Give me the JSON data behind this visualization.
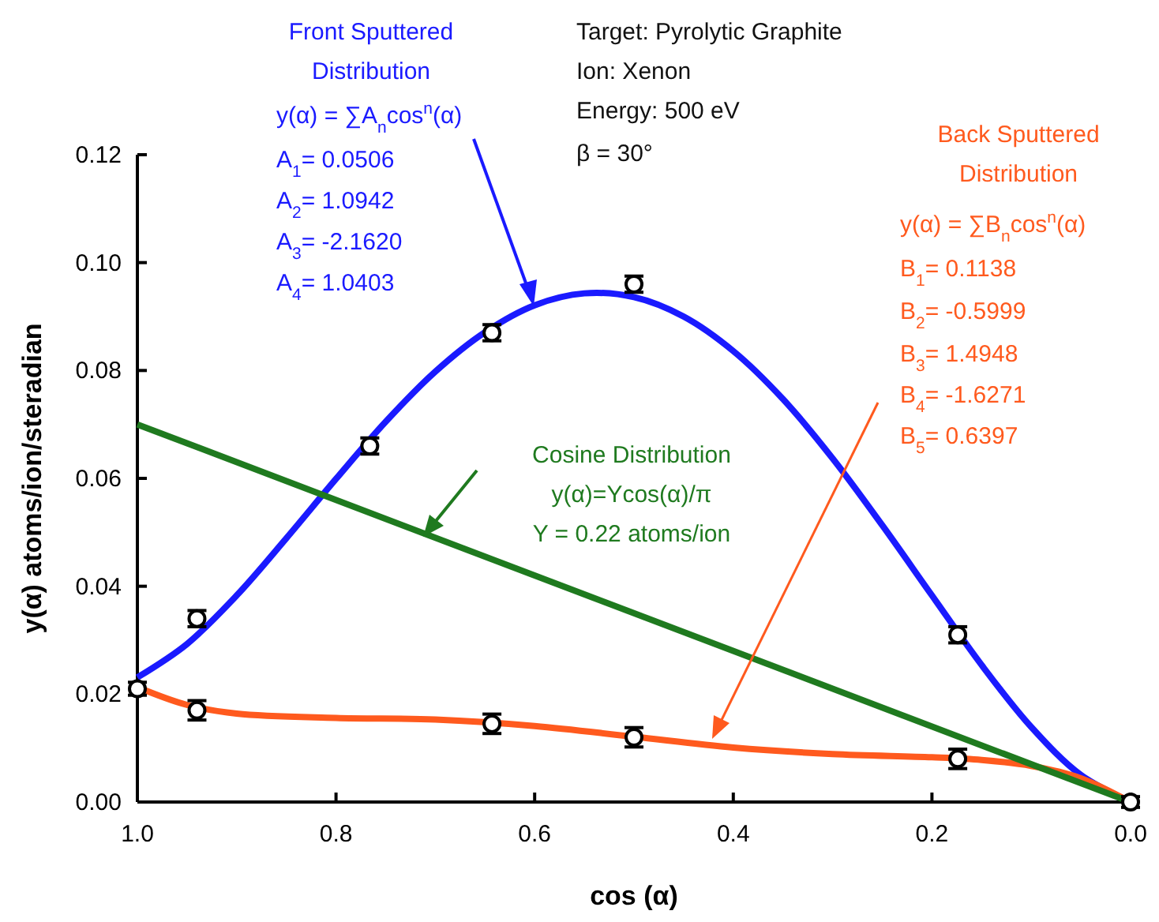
{
  "chart_data": {
    "type": "line",
    "xlabel": "cos (α)",
    "ylabel": "y(α) atoms/ion/steradian",
    "xlim": [
      1,
      0
    ],
    "ylim": [
      0,
      0.12
    ],
    "xticks": [
      {
        "value": 1,
        "label": "1.0"
      },
      {
        "value": 0.8,
        "label": "0.8"
      },
      {
        "value": 0.6,
        "label": "0.6"
      },
      {
        "value": 0.4,
        "label": "0.4"
      },
      {
        "value": 0.2,
        "label": "0.2"
      },
      {
        "value": 0,
        "label": "0.0"
      }
    ],
    "yticks": [
      {
        "value": 0,
        "label": "0.00"
      },
      {
        "value": 0.02,
        "label": "0.02"
      },
      {
        "value": 0.04,
        "label": "0.04"
      },
      {
        "value": 0.06,
        "label": "0.06"
      },
      {
        "value": 0.08,
        "label": "0.08"
      },
      {
        "value": 0.1,
        "label": "0.10"
      },
      {
        "value": 0.12,
        "label": "0.12"
      }
    ],
    "series": [
      {
        "name": "Front Sputtered Distribution",
        "color": "#1a1aff",
        "x": [
          0,
          0.05,
          0.1,
          0.15,
          0.2,
          0.25,
          0.3,
          0.35,
          0.4,
          0.45,
          0.5,
          0.55,
          0.6,
          0.65,
          0.7,
          0.75,
          0.8,
          0.85,
          0.9,
          0.95,
          1
        ],
        "values": [
          0,
          0.005,
          0.0139,
          0.0254,
          0.0383,
          0.0513,
          0.0637,
          0.0747,
          0.0836,
          0.09,
          0.0936,
          0.0943,
          0.0921,
          0.0871,
          0.0798,
          0.0705,
          0.0599,
          0.0489,
          0.0383,
          0.0293,
          0.0231
        ]
      },
      {
        "name": "Back Sputtered Distribution",
        "color": "#ff5a1e",
        "x": [
          0,
          0.05,
          0.1,
          0.15,
          0.2,
          0.3,
          0.4,
          0.5,
          0.6,
          0.7,
          0.8,
          0.9,
          0.95,
          1
        ],
        "values": [
          0,
          0.0044,
          0.0067,
          0.0078,
          0.0083,
          0.0089,
          0.0101,
          0.0121,
          0.0141,
          0.0153,
          0.0156,
          0.0164,
          0.018,
          0.0213
        ]
      },
      {
        "name": "Cosine Distribution",
        "color": "#1f7a1f",
        "x": [
          0,
          1
        ],
        "values": [
          0,
          0.07
        ]
      },
      {
        "type": "scatter",
        "color": "#000000",
        "marker": "circle",
        "x": [
          1,
          0.94,
          0.766,
          0.643,
          0.5,
          0.174,
          0
        ],
        "values": [
          0.021,
          0.034,
          0.066,
          0.087,
          0.096,
          0.031,
          0
        ],
        "errors": [
          0.0012,
          0.0015,
          0.0015,
          0.0015,
          0.0015,
          0.0015,
          0.001
        ]
      },
      {
        "type": "scatter",
        "color": "#000000",
        "marker": "circle",
        "x": [
          0.94,
          0.643,
          0.5,
          0.174
        ],
        "values": [
          0.017,
          0.0145,
          0.012,
          0.008
        ],
        "errors": [
          0.0018,
          0.0018,
          0.0018,
          0.0018
        ]
      }
    ],
    "annotations": [
      "y(α) = ∑A$_{n}$cos$^{n}$(α)",
      "A$_{1}$= 0.0506",
      "A$_{2}$= 1.0942",
      "A$_{3}$= -2.1620",
      "A$_{4}$= 1.0403",
      "Target:  Pyrolytic Graphite",
      "Ion:  Xenon",
      "Energy: 500 eV",
      "β = 30°",
      "y(α) = ∑B$_{n}$cos$^{n}$(α)",
      "B$_{1}$= 0.1138",
      "B$_{2}$= -0.5999",
      "B$_{3}$= 1.4948",
      "B$_{4}$= -1.6271",
      "B$_{5}$= 0.6397",
      "y(α)=Ycos(α)/π",
      "Y = 0.22 atoms/ion"
    ]
  }
}
